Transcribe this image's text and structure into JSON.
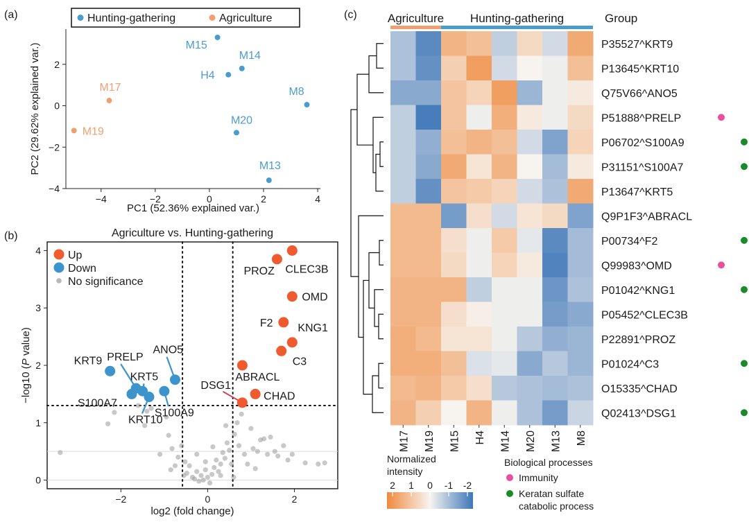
{
  "panel_labels": {
    "a": "(a)",
    "b": "(b)",
    "c": "(c)"
  },
  "colors": {
    "hunting": "#4a9ccf",
    "agriculture": "#f0a070",
    "up": "#ef5a2e",
    "down": "#3d93cc",
    "ns": "#9a9a9a",
    "immunity": "#e8509c",
    "keratan": "#1a8a2a",
    "heat_low": "#ef8a3d",
    "heat_mid": "#f7f4f0",
    "heat_high": "#3f77b8"
  },
  "chart_data": [
    {
      "id": "pca",
      "type": "scatter",
      "xlabel": "PC1 (52.36% explained var.)",
      "ylabel": "PC2 (29.62% explained var.)",
      "xlim": [
        -5.3,
        4.1
      ],
      "ylim": [
        -4.0,
        3.7
      ],
      "xticks": [
        -4,
        -2,
        0,
        2,
        4
      ],
      "yticks": [
        -4,
        -2,
        0,
        2
      ],
      "legend": {
        "placement": "top",
        "entries": [
          "Hunting-gathering",
          "Agriculture"
        ]
      },
      "points": [
        {
          "label": "M15",
          "group": "Hunting-gathering",
          "x": 0.3,
          "y": 3.3
        },
        {
          "label": "M14",
          "group": "Hunting-gathering",
          "x": 1.2,
          "y": 1.8
        },
        {
          "label": "H4",
          "group": "Hunting-gathering",
          "x": 0.7,
          "y": 1.5
        },
        {
          "label": "M8",
          "group": "Hunting-gathering",
          "x": 3.6,
          "y": 0.05
        },
        {
          "label": "M20",
          "group": "Hunting-gathering",
          "x": 1.0,
          "y": -1.3
        },
        {
          "label": "M13",
          "group": "Hunting-gathering",
          "x": 2.2,
          "y": -3.6
        },
        {
          "label": "M17",
          "group": "Agriculture",
          "x": -3.7,
          "y": 0.25
        },
        {
          "label": "M19",
          "group": "Agriculture",
          "x": -5.0,
          "y": -1.2
        }
      ]
    },
    {
      "id": "volcano",
      "type": "scatter",
      "title": "Agriculture vs. Hunting-gathering",
      "xlabel": "log2 (fold change)",
      "ylabel_main": "−log10 (",
      "ylabel_italic": "P",
      "ylabel_end": " value)",
      "xlim": [
        -3.7,
        3.0
      ],
      "ylim": [
        -0.15,
        4.15
      ],
      "xticks": [
        -2,
        0,
        2
      ],
      "yticks": [
        0,
        1,
        2,
        3,
        4
      ],
      "thresholds": {
        "fc": [
          -0.58,
          0.58
        ],
        "p": 1.3
      },
      "legend": {
        "placement": "top-left",
        "entries": [
          "Up",
          "Down",
          "No significance"
        ]
      },
      "up": [
        {
          "label": "CLEC3B",
          "x": 1.95,
          "y": 4.0
        },
        {
          "label": "PROZ",
          "x": 1.6,
          "y": 3.85
        },
        {
          "label": "OMD",
          "x": 1.95,
          "y": 3.2
        },
        {
          "label": "F2",
          "x": 1.75,
          "y": 2.75
        },
        {
          "label": "KNG1",
          "x": 1.95,
          "y": 2.4
        },
        {
          "label": "C3",
          "x": 1.7,
          "y": 2.25
        },
        {
          "label": "ABRACL",
          "x": 0.8,
          "y": 2.0
        },
        {
          "label": "CHAD",
          "x": 1.1,
          "y": 1.5
        },
        {
          "label": "DSG1",
          "x": 0.8,
          "y": 1.35
        }
      ],
      "down": [
        {
          "label": "KRT9",
          "x": -2.25,
          "y": 1.9
        },
        {
          "label": "PRELP",
          "x": -1.65,
          "y": 1.6
        },
        {
          "label": "KRT5",
          "x": -1.5,
          "y": 1.55
        },
        {
          "label": "KRT10",
          "x": -1.35,
          "y": 1.45
        },
        {
          "label": "S100A7",
          "x": -1.75,
          "y": 1.5
        },
        {
          "label": "ANO5",
          "x": -0.75,
          "y": 1.75
        },
        {
          "label": "S100A9",
          "x": -1.0,
          "y": 1.55
        }
      ],
      "ns": [
        [
          -3.4,
          0.48
        ],
        [
          -2.3,
          0.98
        ],
        [
          -2.15,
          1.18
        ],
        [
          -1.6,
          1.3
        ],
        [
          -1.45,
          0.95
        ],
        [
          -1.4,
          1.2
        ],
        [
          -1.3,
          1.25
        ],
        [
          -1.1,
          0.45
        ],
        [
          -0.95,
          1.1
        ],
        [
          -0.9,
          0.78
        ],
        [
          -0.82,
          0.55
        ],
        [
          -0.75,
          0.25
        ],
        [
          -0.68,
          0.4
        ],
        [
          -0.6,
          0.6
        ],
        [
          -0.52,
          0.32
        ],
        [
          -0.48,
          0.12
        ],
        [
          -0.42,
          0.25
        ],
        [
          -0.35,
          0.05
        ],
        [
          -0.3,
          0.02
        ],
        [
          -0.25,
          0.15
        ],
        [
          -0.2,
          -0.02
        ],
        [
          -0.15,
          0.08
        ],
        [
          -0.1,
          0.0
        ],
        [
          -0.05,
          0.18
        ],
        [
          0.0,
          0.05
        ],
        [
          0.05,
          -0.05
        ],
        [
          0.1,
          0.1
        ],
        [
          0.15,
          0.22
        ],
        [
          0.2,
          0.35
        ],
        [
          0.25,
          0.15
        ],
        [
          0.3,
          0.28
        ],
        [
          0.35,
          0.48
        ],
        [
          0.4,
          0.38
        ],
        [
          0.45,
          0.65
        ],
        [
          0.5,
          0.52
        ],
        [
          0.55,
          0.28
        ],
        [
          0.62,
          0.8
        ],
        [
          0.68,
          1.0
        ],
        [
          0.72,
          0.6
        ],
        [
          0.78,
          1.15
        ],
        [
          0.85,
          0.45
        ],
        [
          0.92,
          0.28
        ],
        [
          1.0,
          0.9
        ],
        [
          1.05,
          0.55
        ],
        [
          1.15,
          0.5
        ],
        [
          1.22,
          0.7
        ],
        [
          1.3,
          0.72
        ],
        [
          1.38,
          0.45
        ],
        [
          1.45,
          0.75
        ],
        [
          1.55,
          0.5
        ],
        [
          1.62,
          0.42
        ],
        [
          1.75,
          0.6
        ],
        [
          1.85,
          0.35
        ],
        [
          1.95,
          0.45
        ],
        [
          2.25,
          0.3
        ],
        [
          2.55,
          0.28
        ],
        [
          2.7,
          0.3
        ],
        [
          -0.85,
          0.18
        ],
        [
          -0.55,
          0.08
        ],
        [
          0.3,
          0.08
        ],
        [
          -0.05,
          0.32
        ],
        [
          0.12,
          0.58
        ],
        [
          0.6,
          0.05
        ],
        [
          -0.25,
          0.45
        ],
        [
          1.1,
          0.2
        ],
        [
          0.42,
          0.95
        ]
      ]
    },
    {
      "id": "heatmap",
      "type": "heatmap",
      "columns": [
        "M17",
        "M19",
        "M15",
        "H4",
        "M14",
        "M20",
        "M13",
        "M8"
      ],
      "group_title": "Group",
      "groups": [
        {
          "name": "Agriculture",
          "span": 2
        },
        {
          "name": "Hunting-gathering",
          "span": 6
        }
      ],
      "rows": [
        {
          "label": "P35527^KRT9",
          "process": ""
        },
        {
          "label": "P13645^KRT10",
          "process": ""
        },
        {
          "label": "Q75V66^ANO5",
          "process": ""
        },
        {
          "label": "P51888^PRELP",
          "process": "Immunity"
        },
        {
          "label": "P06702^S100A9",
          "process": "Keratan sulfate catabolic process"
        },
        {
          "label": "P31151^S100A7",
          "process": "Keratan sulfate catabolic process"
        },
        {
          "label": "P13647^KRT5",
          "process": ""
        },
        {
          "label": "Q9P1F3^ABRACL",
          "process": ""
        },
        {
          "label": "P00734^F2",
          "process": "Keratan sulfate catabolic process"
        },
        {
          "label": "Q99983^OMD",
          "process": "Immunity"
        },
        {
          "label": "P01042^KNG1",
          "process": "Keratan sulfate catabolic process"
        },
        {
          "label": "P05452^CLEC3B",
          "process": ""
        },
        {
          "label": "P22891^PROZ",
          "process": ""
        },
        {
          "label": "P01024^C3",
          "process": "Keratan sulfate catabolic process"
        },
        {
          "label": "O15335^CHAD",
          "process": ""
        },
        {
          "label": "Q02413^DSG1",
          "process": "Keratan sulfate catabolic process"
        }
      ],
      "values": [
        [
          -0.8,
          -1.7,
          1.2,
          1.0,
          -0.6,
          0.5,
          -0.4,
          1.4
        ],
        [
          -0.8,
          -1.6,
          0.7,
          1.6,
          -0.4,
          0.0,
          -0.1,
          1.0
        ],
        [
          -1.2,
          -1.2,
          0.9,
          0.6,
          1.6,
          -1.0,
          -0.1,
          0.2
        ],
        [
          -0.6,
          -1.9,
          0.9,
          -0.1,
          1.3,
          0.2,
          -0.1,
          0.5
        ],
        [
          -0.6,
          -1.1,
          1.0,
          1.2,
          1.0,
          -0.4,
          -1.3,
          0.6
        ],
        [
          -0.6,
          -1.2,
          1.4,
          0.3,
          1.2,
          0.0,
          -0.9,
          0.2
        ],
        [
          -0.6,
          -1.6,
          0.9,
          0.8,
          0.6,
          -0.4,
          -0.8,
          1.4
        ],
        [
          1.1,
          1.1,
          -1.4,
          0.4,
          -0.4,
          0.3,
          0.5,
          -1.3
        ],
        [
          1.1,
          1.1,
          0.4,
          -0.1,
          0.8,
          -0.2,
          -1.7,
          -0.9
        ],
        [
          1.1,
          1.1,
          0.5,
          -0.1,
          0.6,
          0.2,
          -1.8,
          -0.9
        ],
        [
          1.2,
          1.2,
          1.2,
          -0.6,
          -0.1,
          -0.1,
          -1.5,
          -0.8
        ],
        [
          1.2,
          1.2,
          0.4,
          0.1,
          -0.1,
          -0.1,
          -1.4,
          -1.2
        ],
        [
          1.3,
          1.1,
          0.3,
          0.3,
          -0.1,
          -0.7,
          -1.1,
          -1.0
        ],
        [
          1.3,
          1.3,
          1.0,
          -0.3,
          -0.2,
          -1.2,
          -0.7,
          -1.0
        ],
        [
          1.1,
          1.2,
          0.8,
          0.4,
          -0.7,
          -0.8,
          -0.9,
          -0.8
        ],
        [
          1.2,
          0.7,
          0.0,
          1.2,
          -0.1,
          -0.8,
          -1.4,
          -0.5
        ]
      ],
      "dendrogram_side": "left",
      "colorbar": {
        "title": "Normalized\nintensity",
        "ticks": [
          "2",
          "1",
          "0",
          "-1",
          "-2"
        ],
        "range": [
          2,
          -2
        ]
      },
      "process_legend": {
        "title": "Biological processes",
        "entries": [
          "Immunity",
          "Keratan sulfate\ncatabolic process"
        ]
      }
    }
  ]
}
